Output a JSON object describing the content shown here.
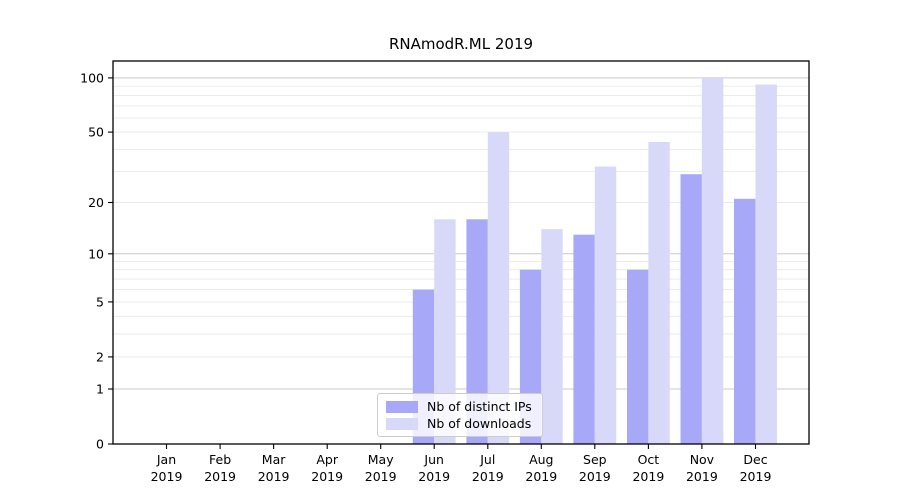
{
  "title": "RNAmodR.ML 2019",
  "legend": {
    "items": [
      {
        "label": "Nb of distinct IPs",
        "color": "#a8a8f8"
      },
      {
        "label": "Nb of downloads",
        "color": "#d8d8f8"
      }
    ]
  },
  "chart_data": {
    "type": "bar",
    "title": "RNAmodR.ML 2019",
    "categories": [
      "Jan",
      "Feb",
      "Mar",
      "Apr",
      "May",
      "Jun",
      "Jul",
      "Aug",
      "Sep",
      "Oct",
      "Nov",
      "Dec"
    ],
    "year_label": "2019",
    "series": [
      {
        "name": "Nb of distinct IPs",
        "color": "#a8a8f8",
        "values": [
          0,
          0,
          0,
          0,
          0,
          6,
          16,
          8,
          13,
          8,
          29,
          21
        ]
      },
      {
        "name": "Nb of downloads",
        "color": "#d8d8f8",
        "values": [
          0,
          0,
          0,
          0,
          0,
          16,
          50,
          14,
          32,
          44,
          100,
          92
        ]
      }
    ],
    "yscale": "log1p",
    "ylim": [
      0,
      124
    ],
    "yticks": [
      0,
      1,
      2,
      5,
      10,
      20,
      50,
      100
    ],
    "major_gridlines": [
      1,
      10,
      100
    ],
    "minor_gridlines": [
      2,
      3,
      4,
      5,
      6,
      7,
      8,
      9,
      20,
      30,
      40,
      50,
      60,
      70,
      80,
      90
    ],
    "xlabel": "",
    "ylabel": "",
    "grid": true,
    "legend_position": "lower-center"
  },
  "colors": {
    "background": "#ffffff",
    "axis": "#000000",
    "tick_text": "#000000",
    "major_grid": "#c9c9c9",
    "minor_grid": "#e9e9e9"
  }
}
